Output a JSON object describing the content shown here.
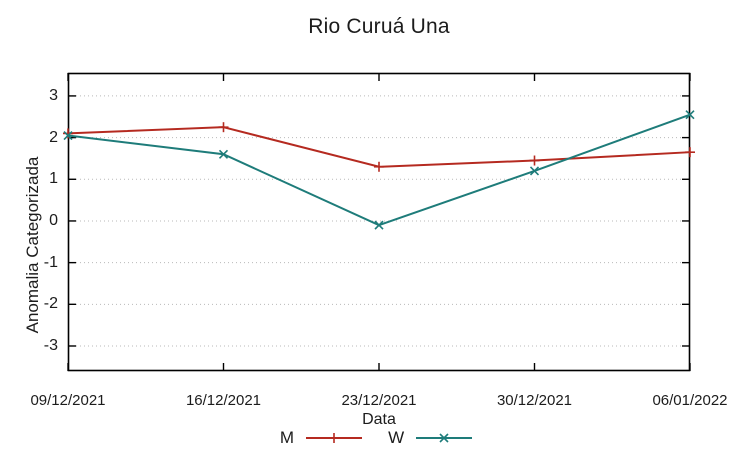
{
  "chart_data": {
    "type": "line",
    "title": "Rio Curuá Una",
    "xlabel": "Data",
    "ylabel": "Anomalia Categorizada",
    "categories": [
      "09/12/2021",
      "16/12/2021",
      "23/12/2021",
      "30/12/2021",
      "06/01/2022"
    ],
    "series": [
      {
        "name": "M",
        "color": "#b52a20",
        "marker": "plus",
        "values": [
          2.1,
          2.25,
          1.3,
          1.45,
          1.65
        ]
      },
      {
        "name": "W",
        "color": "#1e7c7a",
        "marker": "x",
        "values": [
          2.05,
          1.6,
          -0.1,
          1.2,
          2.55
        ]
      }
    ],
    "yticks": [
      3,
      2,
      1,
      0,
      -1,
      -2,
      -3
    ],
    "ylim": [
      -3.6,
      3.55
    ],
    "grid": "horizontal-dotted",
    "legend_position": "bottom-center"
  },
  "colors": {
    "axis": "#000000",
    "grid": "#b9b9b9",
    "text": "#1c1c1c",
    "background": "#ffffff"
  }
}
